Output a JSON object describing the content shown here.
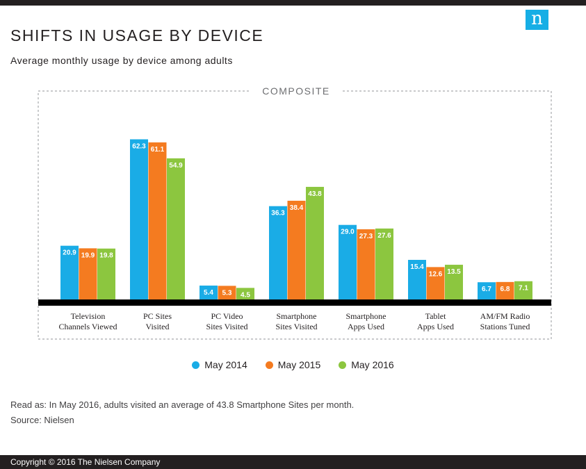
{
  "header": {
    "title": "SHIFTS IN USAGE BY DEVICE",
    "subtitle": "Average monthly usage by device among adults",
    "logo_letter": "n"
  },
  "panel": {
    "label": "COMPOSITE"
  },
  "chart_data": {
    "type": "bar",
    "title": "SHIFTS IN USAGE BY DEVICE",
    "subtitle": "Average monthly usage by device among adults",
    "xlabel": "",
    "ylabel": "",
    "ylim": [
      0,
      70
    ],
    "grid": false,
    "legend_position": "bottom-center",
    "categories": [
      [
        "Television",
        "Channels Viewed"
      ],
      [
        "PC Sites",
        "Visited"
      ],
      [
        "PC Video",
        "Sites Visited"
      ],
      [
        "Smartphone",
        "Sites Visited"
      ],
      [
        "Smartphone",
        "Apps Used"
      ],
      [
        "Tablet",
        "Apps Used"
      ],
      [
        "AM/FM Radio",
        "Stations Tuned"
      ]
    ],
    "series": [
      {
        "name": "May 2014",
        "color": "#1aace6",
        "values": [
          20.9,
          62.3,
          5.4,
          36.3,
          29.0,
          15.4,
          6.7
        ]
      },
      {
        "name": "May 2015",
        "color": "#f47b20",
        "values": [
          19.9,
          61.1,
          5.3,
          38.4,
          27.3,
          12.6,
          6.8
        ]
      },
      {
        "name": "May 2016",
        "color": "#8cc63f",
        "values": [
          19.8,
          54.9,
          4.5,
          43.8,
          27.6,
          13.5,
          7.1
        ]
      }
    ]
  },
  "legend": [
    {
      "label": "May 2014",
      "color": "#1aace6"
    },
    {
      "label": "May 2015",
      "color": "#f47b20"
    },
    {
      "label": "May 2016",
      "color": "#8cc63f"
    }
  ],
  "footnotes": {
    "read_as": "Read as: In May 2016, adults visited an average of 43.8 Smartphone Sites per month.",
    "source": "Source: Nielsen"
  },
  "footer": {
    "copyright": "Copyright © 2016 The Nielsen Company"
  }
}
